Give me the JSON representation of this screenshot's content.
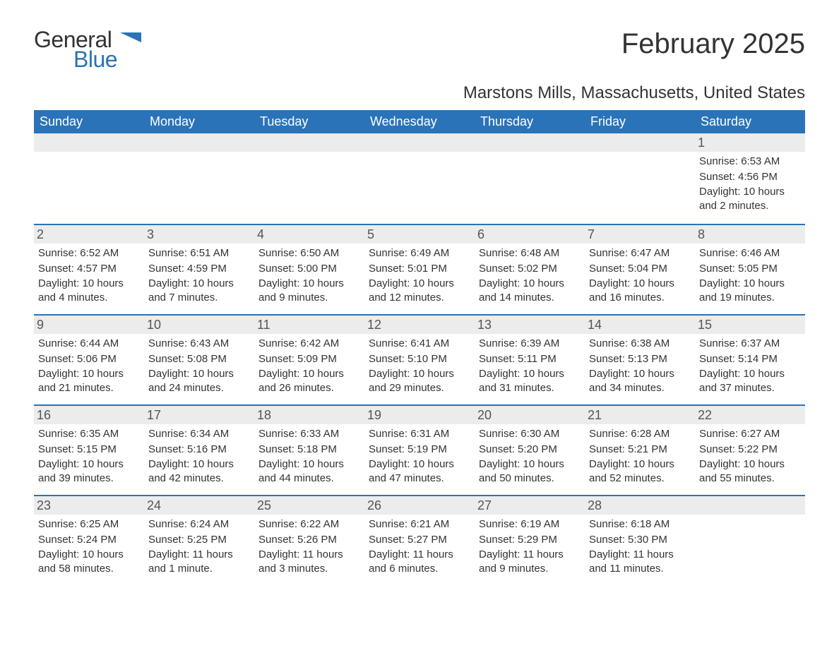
{
  "logo": {
    "word1": "General",
    "word2": "Blue",
    "accent_color": "#2a73b8"
  },
  "title": "February 2025",
  "location": "Marstons Mills, Massachusetts, United States",
  "colors": {
    "header_bg": "#2a73b8",
    "header_text": "#ffffff",
    "daynum_bg": "#ececec",
    "text": "#333333",
    "rule": "#2a73b8"
  },
  "typography": {
    "title_fontsize": 40,
    "location_fontsize": 24,
    "dow_fontsize": 18,
    "daynum_fontsize": 18,
    "body_fontsize": 15
  },
  "days_of_week": [
    "Sunday",
    "Monday",
    "Tuesday",
    "Wednesday",
    "Thursday",
    "Friday",
    "Saturday"
  ],
  "labels": {
    "sunrise": "Sunrise:",
    "sunset": "Sunset:",
    "daylight": "Daylight:"
  },
  "weeks": [
    [
      null,
      null,
      null,
      null,
      null,
      null,
      {
        "n": "1",
        "sunrise": "6:53 AM",
        "sunset": "4:56 PM",
        "daylight": "10 hours and 2 minutes."
      }
    ],
    [
      {
        "n": "2",
        "sunrise": "6:52 AM",
        "sunset": "4:57 PM",
        "daylight": "10 hours and 4 minutes."
      },
      {
        "n": "3",
        "sunrise": "6:51 AM",
        "sunset": "4:59 PM",
        "daylight": "10 hours and 7 minutes."
      },
      {
        "n": "4",
        "sunrise": "6:50 AM",
        "sunset": "5:00 PM",
        "daylight": "10 hours and 9 minutes."
      },
      {
        "n": "5",
        "sunrise": "6:49 AM",
        "sunset": "5:01 PM",
        "daylight": "10 hours and 12 minutes."
      },
      {
        "n": "6",
        "sunrise": "6:48 AM",
        "sunset": "5:02 PM",
        "daylight": "10 hours and 14 minutes."
      },
      {
        "n": "7",
        "sunrise": "6:47 AM",
        "sunset": "5:04 PM",
        "daylight": "10 hours and 16 minutes."
      },
      {
        "n": "8",
        "sunrise": "6:46 AM",
        "sunset": "5:05 PM",
        "daylight": "10 hours and 19 minutes."
      }
    ],
    [
      {
        "n": "9",
        "sunrise": "6:44 AM",
        "sunset": "5:06 PM",
        "daylight": "10 hours and 21 minutes."
      },
      {
        "n": "10",
        "sunrise": "6:43 AM",
        "sunset": "5:08 PM",
        "daylight": "10 hours and 24 minutes."
      },
      {
        "n": "11",
        "sunrise": "6:42 AM",
        "sunset": "5:09 PM",
        "daylight": "10 hours and 26 minutes."
      },
      {
        "n": "12",
        "sunrise": "6:41 AM",
        "sunset": "5:10 PM",
        "daylight": "10 hours and 29 minutes."
      },
      {
        "n": "13",
        "sunrise": "6:39 AM",
        "sunset": "5:11 PM",
        "daylight": "10 hours and 31 minutes."
      },
      {
        "n": "14",
        "sunrise": "6:38 AM",
        "sunset": "5:13 PM",
        "daylight": "10 hours and 34 minutes."
      },
      {
        "n": "15",
        "sunrise": "6:37 AM",
        "sunset": "5:14 PM",
        "daylight": "10 hours and 37 minutes."
      }
    ],
    [
      {
        "n": "16",
        "sunrise": "6:35 AM",
        "sunset": "5:15 PM",
        "daylight": "10 hours and 39 minutes."
      },
      {
        "n": "17",
        "sunrise": "6:34 AM",
        "sunset": "5:16 PM",
        "daylight": "10 hours and 42 minutes."
      },
      {
        "n": "18",
        "sunrise": "6:33 AM",
        "sunset": "5:18 PM",
        "daylight": "10 hours and 44 minutes."
      },
      {
        "n": "19",
        "sunrise": "6:31 AM",
        "sunset": "5:19 PM",
        "daylight": "10 hours and 47 minutes."
      },
      {
        "n": "20",
        "sunrise": "6:30 AM",
        "sunset": "5:20 PM",
        "daylight": "10 hours and 50 minutes."
      },
      {
        "n": "21",
        "sunrise": "6:28 AM",
        "sunset": "5:21 PM",
        "daylight": "10 hours and 52 minutes."
      },
      {
        "n": "22",
        "sunrise": "6:27 AM",
        "sunset": "5:22 PM",
        "daylight": "10 hours and 55 minutes."
      }
    ],
    [
      {
        "n": "23",
        "sunrise": "6:25 AM",
        "sunset": "5:24 PM",
        "daylight": "10 hours and 58 minutes."
      },
      {
        "n": "24",
        "sunrise": "6:24 AM",
        "sunset": "5:25 PM",
        "daylight": "11 hours and 1 minute."
      },
      {
        "n": "25",
        "sunrise": "6:22 AM",
        "sunset": "5:26 PM",
        "daylight": "11 hours and 3 minutes."
      },
      {
        "n": "26",
        "sunrise": "6:21 AM",
        "sunset": "5:27 PM",
        "daylight": "11 hours and 6 minutes."
      },
      {
        "n": "27",
        "sunrise": "6:19 AM",
        "sunset": "5:29 PM",
        "daylight": "11 hours and 9 minutes."
      },
      {
        "n": "28",
        "sunrise": "6:18 AM",
        "sunset": "5:30 PM",
        "daylight": "11 hours and 11 minutes."
      },
      null
    ]
  ]
}
